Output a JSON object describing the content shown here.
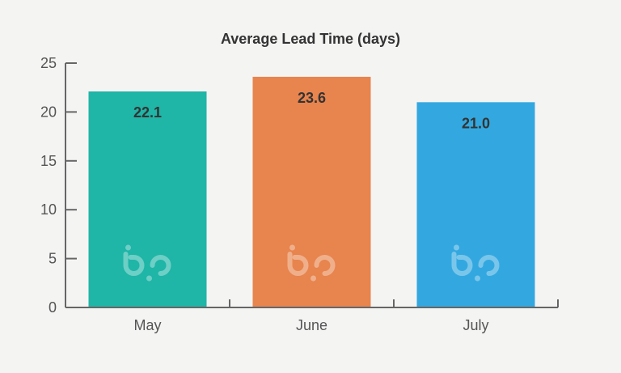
{
  "chart_data": {
    "type": "bar",
    "title": "Average Lead Time (days)",
    "categories": [
      "May",
      "June",
      "July"
    ],
    "values": [
      22.1,
      23.6,
      21.0
    ],
    "value_labels": [
      "22.1",
      "23.6",
      "21.0"
    ],
    "colors": [
      "#1fb5a7",
      "#e8844e",
      "#33a8e0"
    ],
    "ylim": [
      0,
      25
    ],
    "yticks": [
      0,
      5,
      10,
      15,
      20,
      25
    ],
    "xlabel": "",
    "ylabel": "",
    "grid": false,
    "legend": "none",
    "watermark": "bp"
  }
}
